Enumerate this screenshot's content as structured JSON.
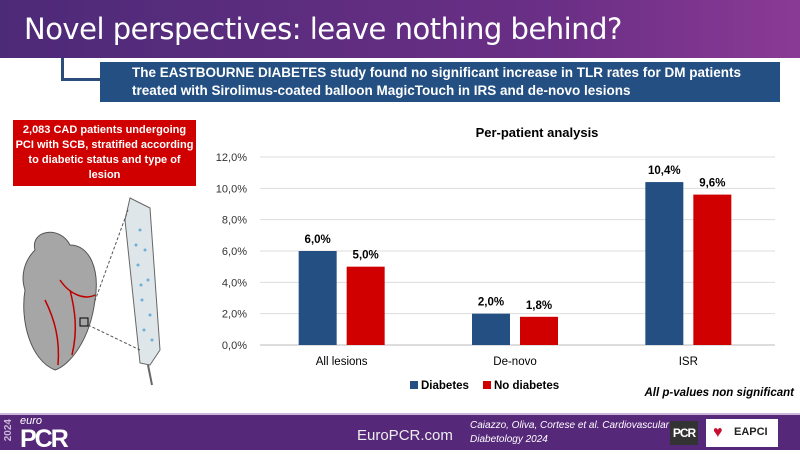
{
  "header": {
    "title": "Novel perspectives: leave nothing behind?"
  },
  "banner": {
    "line1": "The EASTBOURNE DIABETES study found no significant increase in TLR rates for DM patients",
    "line2": "treated with Sirolimus-coated balloon MagicTouch in IRS and de-novo lesions"
  },
  "callout": {
    "text": "2,083 CAD patients undergoing PCI with SCB, stratified according to diabetic status and type of lesion"
  },
  "chart_data": {
    "type": "bar",
    "title": "Per-patient analysis",
    "categories": [
      "All lesions",
      "De-novo",
      "ISR"
    ],
    "series": [
      {
        "name": "Diabetes",
        "color": "#234f82",
        "values": [
          6.0,
          2.0,
          10.4
        ],
        "labels": [
          "6,0%",
          "2,0%",
          "10,4%"
        ]
      },
      {
        "name": "No diabetes",
        "color": "#d00000",
        "values": [
          5.0,
          1.8,
          9.6
        ],
        "labels": [
          "5,0%",
          "1,8%",
          "9,6%"
        ]
      }
    ],
    "ylim": [
      0,
      12
    ],
    "yticks": [
      0,
      2,
      4,
      6,
      8,
      10,
      12
    ],
    "ytick_labels": [
      "0,0%",
      "2,0%",
      "4,0%",
      "6,0%",
      "8,0%",
      "10,0%",
      "12,0%"
    ],
    "grid": true,
    "legend_position": "bottom",
    "annotation": "All p-values non significant",
    "xlabel": "",
    "ylabel": ""
  },
  "footer": {
    "year": "2024",
    "euro": "euro",
    "logo": "PCR",
    "site": "EuroPCR.com",
    "citation_line1": "Caiazzo, Oliva, Cortese et al. Cardiovascular",
    "citation_line2": "Diabetology 2024",
    "pcr_badge": "PCR",
    "eapci": "EAPCI"
  }
}
